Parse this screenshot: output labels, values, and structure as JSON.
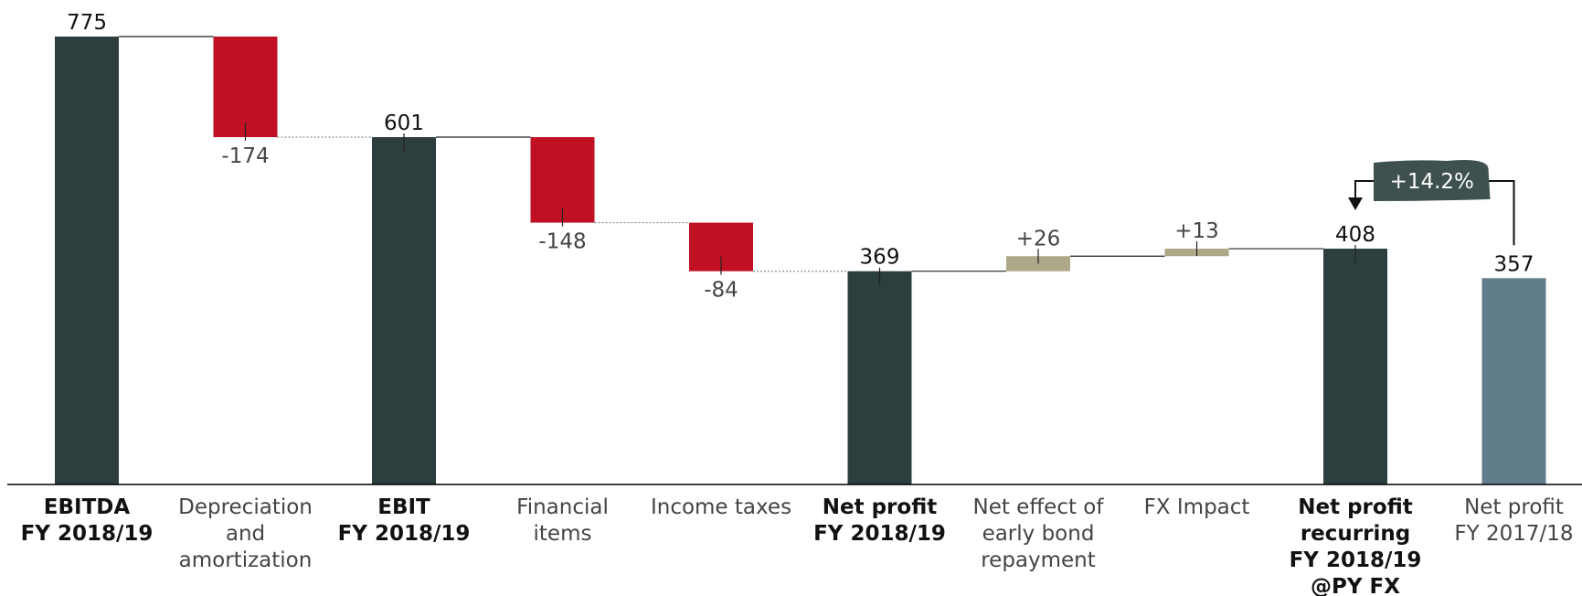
{
  "chart_data": {
    "type": "waterfall",
    "categories": [
      {
        "id": "ebitda",
        "lines": [
          "EBITDA",
          "FY 2018/19"
        ],
        "kind": "total",
        "value": 775,
        "label": "775",
        "bold": true
      },
      {
        "id": "depreciation",
        "lines": [
          "Depreciation",
          "and",
          "amortization"
        ],
        "kind": "delta",
        "value": -174,
        "label": "-174",
        "bold": false
      },
      {
        "id": "ebit",
        "lines": [
          "EBIT",
          "FY 2018/19"
        ],
        "kind": "total",
        "value": 601,
        "label": "601",
        "bold": true
      },
      {
        "id": "financial-items",
        "lines": [
          "Financial",
          "items"
        ],
        "kind": "delta",
        "value": -148,
        "label": "-148",
        "bold": false
      },
      {
        "id": "income-taxes",
        "lines": [
          "Income taxes"
        ],
        "kind": "delta",
        "value": -84,
        "label": "-84",
        "bold": false
      },
      {
        "id": "net-profit",
        "lines": [
          "Net profit",
          "FY 2018/19"
        ],
        "kind": "total",
        "value": 369,
        "label": "369",
        "bold": true
      },
      {
        "id": "bond-repayment",
        "lines": [
          "Net effect of",
          "early bond",
          "repayment"
        ],
        "kind": "delta",
        "value": 26,
        "label": "+26",
        "bold": false
      },
      {
        "id": "fx-impact",
        "lines": [
          "FX Impact"
        ],
        "kind": "delta",
        "value": 13,
        "label": "+13",
        "bold": false
      },
      {
        "id": "net-profit-recurring",
        "lines": [
          "Net profit",
          "recurring",
          "FY 2018/19",
          "@PY FX"
        ],
        "kind": "total",
        "value": 408,
        "label": "408",
        "bold": true
      },
      {
        "id": "net-profit-prior",
        "lines": [
          "Net profit",
          "FY 2017/18"
        ],
        "kind": "prior",
        "value": 357,
        "label": "357",
        "bold": false
      }
    ],
    "ylim": [
      0,
      800
    ],
    "comparison": {
      "from": "net-profit-prior",
      "to": "net-profit-recurring",
      "label": "+14.2%"
    },
    "colors": {
      "total": "#2c3e3e",
      "negative": "#c01124",
      "positive": "#ada888",
      "prior": "#617d8b",
      "badge": "#3f514f",
      "axis": "#000000",
      "connector": "#555555",
      "text_dark": "#111111",
      "text_light": "#444444"
    }
  }
}
